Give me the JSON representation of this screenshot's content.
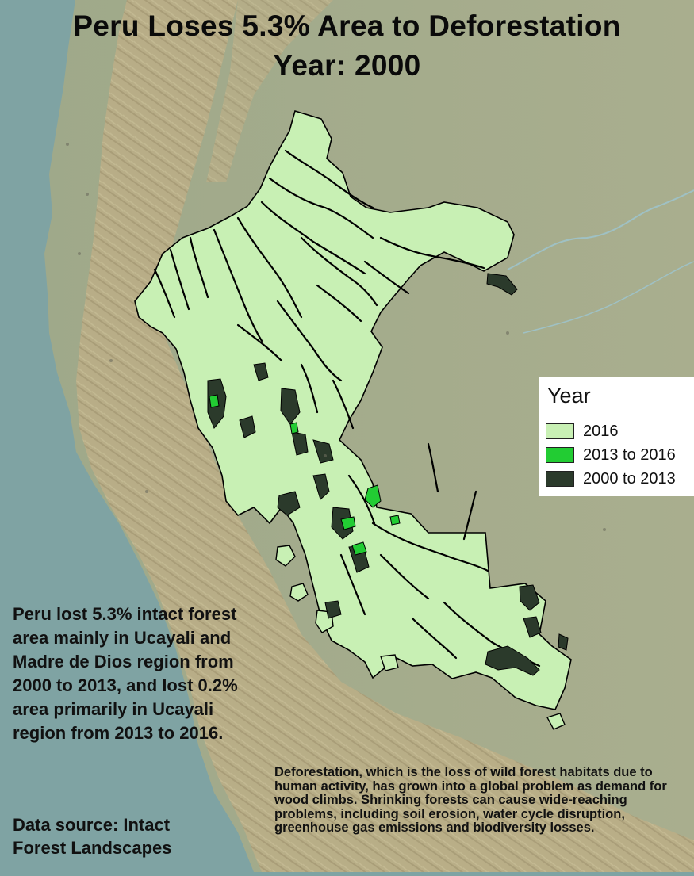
{
  "title": {
    "line1": "Peru Loses 5.3% Area to Deforestation",
    "line2": "Year: 2000"
  },
  "legend": {
    "title": "Year",
    "items": [
      {
        "label": "2016",
        "color": "#c8f0b4"
      },
      {
        "label": "2013 to 2016",
        "color": "#22cc33"
      },
      {
        "label": "2000 to 2013",
        "color": "#2b3a2b"
      }
    ]
  },
  "colors": {
    "ocean": "#7fa3a3",
    "land": "#a5ad8a",
    "mountains": "#b8aa82",
    "forest_2016": "#c8f0b4",
    "loss_2013_2016": "#22cc33",
    "loss_2000_2013": "#2b3a2b",
    "river": "#111111"
  },
  "summary": "Peru lost 5.3% intact forest area mainly in Ucayali and Madre de Dios region from 2000 to 2013, and lost 0.2% area primarily in Ucayali region from 2013 to 2016.",
  "data_source": "Data source: Intact Forest Landscapes",
  "description": "Deforestation, which is the loss of wild forest habitats due to human activity, has grown into a global problem as demand for wood climbs. Shrinking forests can cause wide-reaching problems, including soil erosion, water cycle disruption, greenhouse gas emissions and biodiversity losses."
}
